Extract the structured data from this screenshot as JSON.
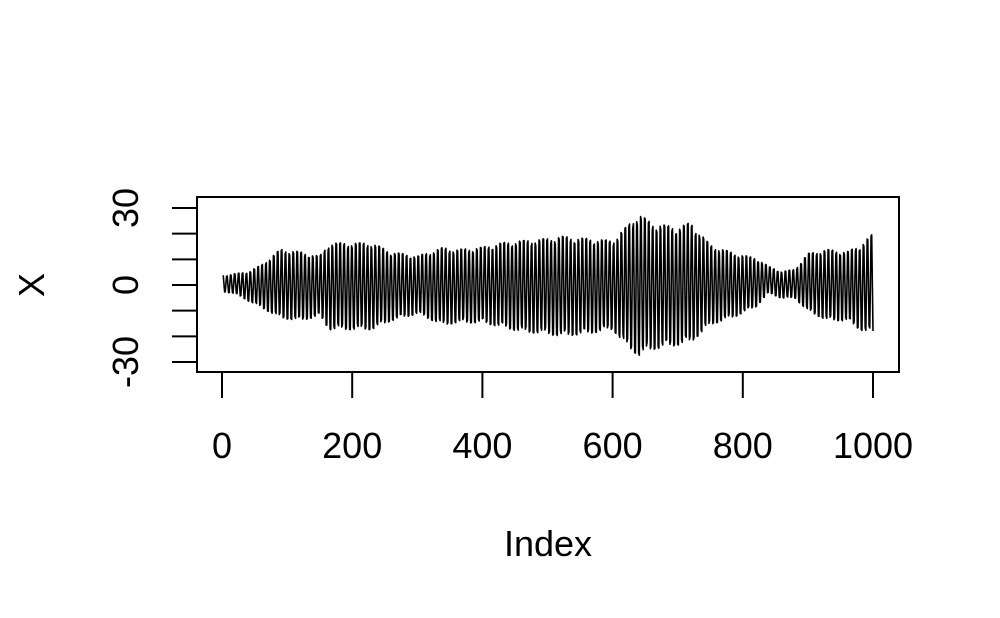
{
  "chart_data": {
    "type": "line",
    "title": "",
    "xlabel": "Index",
    "ylabel": "X",
    "xlim": [
      0,
      1000
    ],
    "ylim": [
      -35,
      35
    ],
    "x_ticks": [
      {
        "value": 0,
        "label": "0"
      },
      {
        "value": 200,
        "label": "200"
      },
      {
        "value": 400,
        "label": "400"
      },
      {
        "value": 600,
        "label": "600"
      },
      {
        "value": 800,
        "label": "800"
      },
      {
        "value": 1000,
        "label": "1000"
      }
    ],
    "y_ticks": [
      {
        "value": -30,
        "label": "-30"
      },
      {
        "value": -20,
        "label": ""
      },
      {
        "value": -10,
        "label": ""
      },
      {
        "value": 0,
        "label": "0"
      },
      {
        "value": 10,
        "label": ""
      },
      {
        "value": 20,
        "label": ""
      },
      {
        "value": 30,
        "label": "30"
      }
    ],
    "grid": false,
    "series": [
      {
        "color": "#000000",
        "length": 1000,
        "oscillation_period": 6,
        "envelope": {
          "x": [
            0,
            20,
            40,
            60,
            90,
            120,
            150,
            165,
            200,
            230,
            260,
            300,
            340,
            360,
            400,
            430,
            460,
            500,
            520,
            560,
            600,
            620,
            640,
            660,
            700,
            720,
            750,
            790,
            820,
            840,
            860,
            880,
            900,
            930,
            960,
            980,
            1000
          ],
          "upper": [
            4,
            5,
            6,
            9,
            16,
            15,
            13,
            19,
            19,
            19,
            15,
            13,
            17,
            16,
            17,
            19,
            20,
            21,
            22,
            21,
            20,
            26,
            32,
            28,
            26,
            28,
            18,
            14,
            12,
            8,
            6,
            7,
            14,
            16,
            15,
            18,
            23
          ],
          "lower": [
            -3,
            -4,
            -7,
            -10,
            -15,
            -16,
            -14,
            -20,
            -20,
            -20,
            -16,
            -13,
            -18,
            -17,
            -17,
            -19,
            -21,
            -22,
            -23,
            -22,
            -20,
            -27,
            -32,
            -29,
            -27,
            -26,
            -18,
            -14,
            -10,
            -4,
            -6,
            -6,
            -12,
            -16,
            -16,
            -20,
            -22
          ]
        }
      }
    ]
  }
}
